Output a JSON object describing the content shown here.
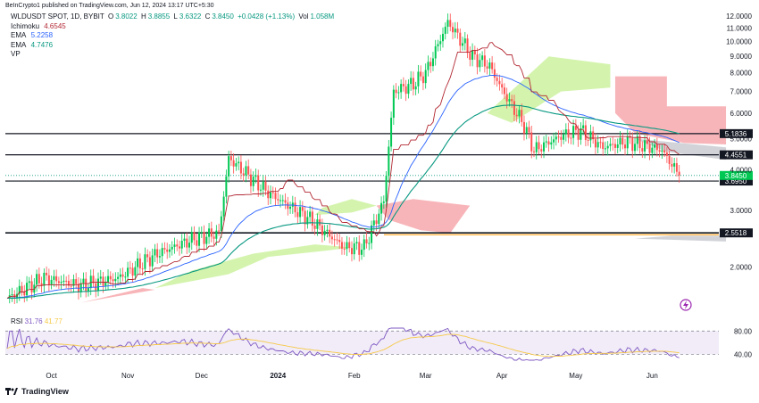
{
  "header": {
    "published": "BeInCrypto1 published on TradingView.com, Jun 12, 2024 13:17 UTC+5:30"
  },
  "legend": {
    "symbol": "WLDUSDT SPOT, 1D, BYBIT",
    "open_label": "O",
    "open": "3.8022",
    "high_label": "H",
    "high": "3.8855",
    "low_label": "L",
    "low": "3.6322",
    "close_label": "C",
    "close": "3.8450",
    "change": "+0.0428 (+1.13%)",
    "vol_label": "Vol",
    "vol": "1.058M",
    "indicators": [
      {
        "name": "Ichimoku",
        "value": "4.6545",
        "color": "#b22833"
      },
      {
        "name": "EMA",
        "value": "5.2258",
        "color": "#2962ff"
      },
      {
        "name": "EMA",
        "value": "4.7476",
        "color": "#089981"
      },
      {
        "name": "VP",
        "value": "",
        "color": "#131722"
      }
    ]
  },
  "rsi_panel": {
    "label": "RSI",
    "value": "31.76",
    "value2": "41.77",
    "levels": [
      "80.00",
      "40.00"
    ]
  },
  "footer": {
    "brand": "TradingView"
  },
  "chart_data": {
    "type": "candlestick",
    "symbol": "WLDUSDT",
    "timeframe": "1D",
    "y_scale": "log",
    "ylim": [
      1.45,
      12.0
    ],
    "y_ticks": [
      "12.0000",
      "11.0000",
      "10.0000",
      "9.0000",
      "8.0000",
      "7.0000",
      "6.0000",
      "5.0000",
      "4.0000",
      "3.0000",
      "2.0000"
    ],
    "x_ticks": [
      "Oct",
      "Nov",
      "Dec",
      "2024",
      "Feb",
      "Mar",
      "Apr",
      "May",
      "Jun"
    ],
    "horizontal_levels": [
      "5.1836",
      "4.4551",
      "3.6950",
      "2.5518"
    ],
    "last_price": "3.8450",
    "colors": {
      "up": "#089981",
      "down": "#f23645",
      "bull": "#00c853",
      "bear": "#ff5252",
      "ema_fast": "#2962ff",
      "ema_slow": "#089981",
      "kijun": "#b22833"
    },
    "series": [
      {
        "name": "Price (daily closes, approx.)",
        "points": [
          [
            "Sep 13",
            1.6
          ],
          [
            "Sep 28",
            1.85
          ],
          [
            "Oct 13",
            1.75
          ],
          [
            "Oct 28",
            1.85
          ],
          [
            "Nov 13",
            2.2
          ],
          [
            "Nov 28",
            2.45
          ],
          [
            "Dec 8",
            2.55
          ],
          [
            "Dec 12",
            4.35
          ],
          [
            "Dec 28",
            3.4
          ],
          [
            "Jan 13",
            2.85
          ],
          [
            "Jan 28",
            2.3
          ],
          [
            "Feb 5",
            2.3
          ],
          [
            "Feb 13",
            3.2
          ],
          [
            "Feb 17",
            7.0
          ],
          [
            "Feb 25",
            7.4
          ],
          [
            "Mar 1",
            8.0
          ],
          [
            "Mar 10",
            11.5
          ],
          [
            "Mar 20",
            9.0
          ],
          [
            "Mar 27",
            8.4
          ],
          [
            "Apr 1",
            7.1
          ],
          [
            "Apr 10",
            5.5
          ],
          [
            "Apr 14",
            4.6
          ],
          [
            "Apr 25",
            5.1
          ],
          [
            "May 3",
            5.3
          ],
          [
            "May 12",
            4.7
          ],
          [
            "May 22",
            4.9
          ],
          [
            "Jun 5",
            4.6
          ],
          [
            "Jun 12",
            3.845
          ]
        ]
      }
    ]
  }
}
